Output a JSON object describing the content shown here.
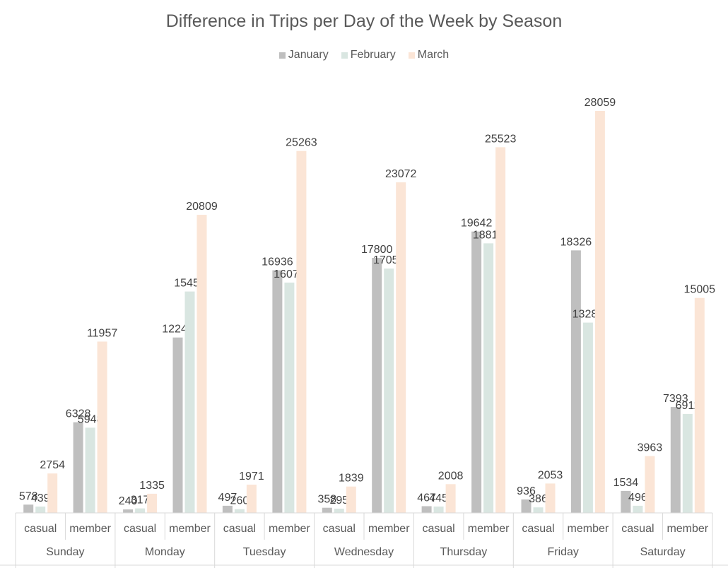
{
  "chart_data": {
    "type": "bar",
    "title": "Difference in Trips per Day of the Week by Season",
    "xlabel": "",
    "ylabel": "",
    "groups": [
      "Sunday",
      "Monday",
      "Tuesday",
      "Wednesday",
      "Thursday",
      "Friday",
      "Saturday"
    ],
    "subcategories": [
      "casual",
      "member"
    ],
    "series": [
      {
        "name": "January",
        "color": "#bfbfbf",
        "values": [
          578,
          6328,
          240,
          12245,
          497,
          16936,
          358,
          17800,
          467,
          19642,
          936,
          18326,
          1534,
          7393
        ]
      },
      {
        "name": "February",
        "color": "#d9e6e1",
        "values": [
          439,
          5948,
          317,
          15453,
          260,
          16078,
          295,
          17053,
          445,
          18818,
          386,
          13287,
          496,
          6911
        ]
      },
      {
        "name": "March",
        "color": "#fbe5d6",
        "values": [
          2754,
          11957,
          1335,
          20809,
          1971,
          25263,
          1839,
          23072,
          2008,
          25523,
          2053,
          28059,
          3963,
          15005
        ]
      }
    ],
    "ylim": [
      0,
      28059
    ],
    "grid": false,
    "legend_position": "top"
  }
}
